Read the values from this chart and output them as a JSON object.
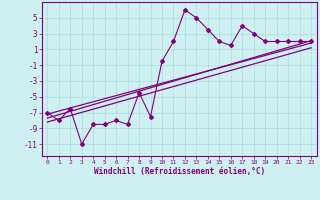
{
  "xlabel": "Windchill (Refroidissement éolien,°C)",
  "x_data": [
    0,
    1,
    2,
    3,
    4,
    5,
    6,
    7,
    8,
    9,
    10,
    11,
    12,
    13,
    14,
    15,
    16,
    17,
    18,
    19,
    20,
    21,
    22,
    23
  ],
  "scatter_y": [
    -7,
    -8,
    -6.5,
    -11,
    -8.5,
    -8.5,
    -8,
    -8.5,
    -4.5,
    -7.5,
    -0.5,
    2,
    6,
    5,
    3.5,
    2,
    1.5,
    4,
    3,
    2,
    2,
    2,
    2,
    2
  ],
  "line1_x": [
    0,
    23
  ],
  "line1_y": [
    -7.2,
    1.8
  ],
  "line2_x": [
    0,
    23
  ],
  "line2_y": [
    -8.2,
    1.2
  ],
  "line3_x": [
    0,
    23
  ],
  "line3_y": [
    -7.7,
    2.1
  ],
  "bg_color": "#cff0f0",
  "line_color": "#800080",
  "grid_color": "#aadddd",
  "ylim": [
    -12.5,
    7
  ],
  "yticks": [
    -11,
    -9,
    -7,
    -5,
    -3,
    -1,
    1,
    3,
    5
  ],
  "xticks": [
    0,
    1,
    2,
    3,
    4,
    5,
    6,
    7,
    8,
    9,
    10,
    11,
    12,
    13,
    14,
    15,
    16,
    17,
    18,
    19,
    20,
    21,
    22,
    23
  ]
}
